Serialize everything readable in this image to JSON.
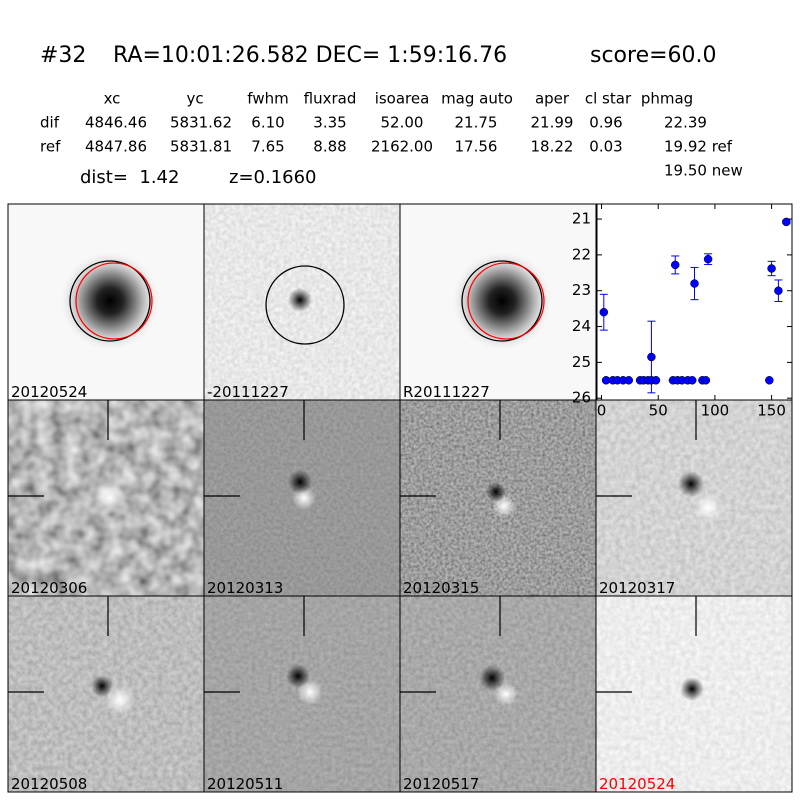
{
  "header": {
    "id": "#32",
    "coords": "RA=10:01:26.582 DEC= 1:59:16.76",
    "score": "score=60.0"
  },
  "table": {
    "columns": [
      "xc",
      "yc",
      "fwhm",
      "fluxrad",
      "isoarea",
      "mag auto",
      "aper",
      "cl star",
      "phmag"
    ],
    "rows": [
      {
        "label": "dif",
        "cells": [
          "4846.46",
          "5831.62",
          "6.10",
          "3.35",
          "52.00",
          "21.75",
          "21.99",
          "0.96",
          "22.39"
        ]
      },
      {
        "label": "ref",
        "cells": [
          "4847.86",
          "5831.81",
          "7.65",
          "8.88",
          "2162.00",
          "17.56",
          "18.22",
          "0.03",
          "19.92 ref"
        ]
      }
    ],
    "note": "19.50 new"
  },
  "summary": {
    "dist": "dist=  1.42",
    "z": "z=0.1660"
  },
  "panels": [
    {
      "label": "20120524"
    },
    {
      "label": "-20111227"
    },
    {
      "label": "R20111227"
    },
    {
      "label": "20120306"
    },
    {
      "label": "20120313"
    },
    {
      "label": "20120315"
    },
    {
      "label": "20120317"
    },
    {
      "label": "20120508"
    },
    {
      "label": "20120511"
    },
    {
      "label": "20120517"
    },
    {
      "label": "20120524",
      "color": "#ff0000"
    }
  ],
  "chart_data": {
    "type": "scatter",
    "color": "#0000ff",
    "x": [
      2,
      4,
      10,
      14,
      19,
      24,
      34,
      37,
      41,
      44,
      44,
      48,
      63,
      65,
      67,
      71,
      76,
      80,
      82,
      89,
      92,
      94,
      148,
      150,
      156,
      163
    ],
    "values": [
      23.6,
      25.5,
      25.5,
      25.5,
      25.5,
      25.5,
      25.5,
      25.5,
      25.5,
      24.85,
      25.5,
      25.5,
      25.5,
      22.28,
      25.5,
      25.5,
      25.5,
      25.5,
      22.8,
      25.5,
      25.5,
      22.12,
      25.5,
      22.38,
      23.0,
      21.08
    ],
    "errors": [
      0.5,
      null,
      null,
      null,
      null,
      null,
      null,
      null,
      null,
      1.0,
      null,
      null,
      null,
      0.25,
      null,
      null,
      null,
      null,
      0.45,
      null,
      null,
      0.15,
      null,
      0.2,
      0.3,
      0.05
    ],
    "xlim": [
      -4,
      168
    ],
    "ylim": [
      26.05,
      20.58
    ],
    "xticks": [
      0,
      50,
      100,
      150
    ],
    "yticks": [
      21,
      22,
      23,
      24,
      25,
      26
    ]
  }
}
